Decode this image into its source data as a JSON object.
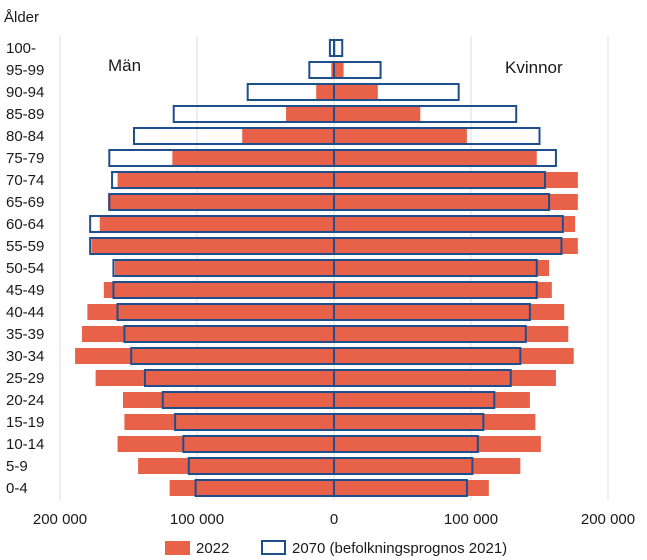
{
  "chart_data": {
    "type": "bar",
    "orientation": "horizontal-population-pyramid",
    "ylabel": "Ålder",
    "annotations": {
      "left": "Män",
      "right": "Kvinnor"
    },
    "categories": [
      "100-",
      "95-99",
      "90-94",
      "85-89",
      "80-84",
      "75-79",
      "70-74",
      "65-69",
      "60-64",
      "55-59",
      "50-54",
      "45-49",
      "40-44",
      "35-39",
      "30-34",
      "25-29",
      "20-24",
      "15-19",
      "10-14",
      "5-9",
      "0-4"
    ],
    "xlim": [
      -200000,
      200000
    ],
    "x_ticks": [
      -200000,
      -100000,
      0,
      100000,
      200000
    ],
    "x_tick_labels": [
      "200 000",
      "100 000",
      "0",
      "100 000",
      "200 000"
    ],
    "grid": "vertical",
    "legend_position": "bottom",
    "colors": {
      "fill_2022": "#e8624a",
      "outline_2070": "#1f4e8c",
      "grid": "#dddddd"
    },
    "series": [
      {
        "name": "2022",
        "style": "filled",
        "men": [
          -500,
          -2000,
          -13000,
          -35000,
          -67000,
          -118000,
          -158000,
          -165000,
          -171000,
          -177000,
          -160000,
          -168000,
          -180000,
          -184000,
          -189000,
          -174000,
          -154000,
          -153000,
          -158000,
          -143000,
          -120000
        ],
        "women": [
          1000,
          7000,
          32000,
          63000,
          97000,
          148000,
          178000,
          178000,
          176000,
          178000,
          157000,
          159000,
          168000,
          171000,
          175000,
          162000,
          143000,
          147000,
          151000,
          136000,
          113000
        ]
      },
      {
        "name": "2070 (befolkningsprognos 2021)",
        "style": "outline",
        "men": [
          -3000,
          -18000,
          -63000,
          -117000,
          -146000,
          -164000,
          -162000,
          -164000,
          -178000,
          -178000,
          -161000,
          -161000,
          -158000,
          -153000,
          -148000,
          -138000,
          -125000,
          -116000,
          -110000,
          -106000,
          -101000
        ],
        "women": [
          6000,
          34000,
          91000,
          133000,
          150000,
          162000,
          154000,
          157000,
          167000,
          166000,
          148000,
          148000,
          143000,
          140000,
          136000,
          129000,
          117000,
          109000,
          105000,
          101000,
          97000
        ]
      }
    ]
  }
}
